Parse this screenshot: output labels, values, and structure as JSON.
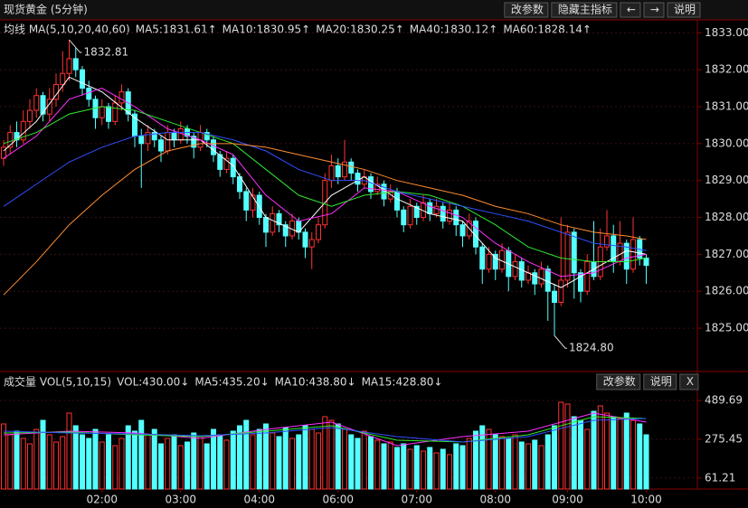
{
  "chart_data": [
    {
      "type": "candlestick",
      "title": "现货黄金 (5分钟)",
      "buttons": [
        "改参数",
        "隐藏主指标",
        "←",
        "→",
        "说明"
      ],
      "legend_title": "均线 MA(5,10,20,40,60)",
      "up_color": "#ff3232",
      "down_color": "#54ffff",
      "annotations": [
        {
          "text": "1832.81",
          "index": 10,
          "value": 1832.81
        },
        {
          "text": "1824.80",
          "index": 84,
          "value": 1824.8
        }
      ],
      "ylim": [
        1823.9,
        1833.35
      ],
      "yticks": [
        {
          "value": 1825,
          "label": "1825.00"
        },
        {
          "value": 1826,
          "label": "1826.00"
        },
        {
          "value": 1827,
          "label": "1827.00"
        },
        {
          "value": 1828,
          "label": "1828.00"
        },
        {
          "value": 1829,
          "label": "1829.00"
        },
        {
          "value": 1830,
          "label": "1830.00"
        },
        {
          "value": 1831,
          "label": "1831.00"
        },
        {
          "value": 1832,
          "label": "1832.00"
        },
        {
          "value": 1833,
          "label": "1833.00"
        }
      ],
      "grid": true,
      "categories": [
        null,
        null,
        null,
        null,
        null,
        null,
        null,
        null,
        null,
        null,
        null,
        null,
        null,
        null,
        null,
        "02:00",
        null,
        null,
        null,
        null,
        null,
        null,
        null,
        null,
        null,
        null,
        null,
        "03:00",
        null,
        null,
        null,
        null,
        null,
        null,
        null,
        null,
        null,
        null,
        null,
        "04:00",
        null,
        null,
        null,
        null,
        null,
        null,
        null,
        null,
        null,
        null,
        null,
        "06:00",
        null,
        null,
        null,
        null,
        null,
        null,
        null,
        null,
        null,
        null,
        null,
        "07:00",
        null,
        null,
        null,
        null,
        null,
        null,
        null,
        null,
        null,
        null,
        null,
        "08:00",
        null,
        null,
        null,
        null,
        null,
        null,
        null,
        null,
        null,
        null,
        "09:00",
        null,
        null,
        null,
        null,
        null,
        null,
        null,
        null,
        null,
        null,
        null,
        "10:00"
      ],
      "ohlc": [
        [
          1829.6,
          1830.1,
          1829.4,
          1829.9
        ],
        [
          1829.9,
          1830.5,
          1829.7,
          1830.3
        ],
        [
          1830.3,
          1830.6,
          1829.9,
          1830.1
        ],
        [
          1830.1,
          1830.9,
          1830.0,
          1830.6
        ],
        [
          1830.6,
          1831.2,
          1830.4,
          1830.9
        ],
        [
          1830.9,
          1831.5,
          1830.7,
          1831.3
        ],
        [
          1831.3,
          1831.4,
          1830.6,
          1830.8
        ],
        [
          1830.8,
          1831.5,
          1830.6,
          1831.2
        ],
        [
          1831.2,
          1831.9,
          1831.0,
          1831.6
        ],
        [
          1831.6,
          1832.5,
          1831.4,
          1831.9
        ],
        [
          1831.9,
          1832.81,
          1831.7,
          1832.3
        ],
        [
          1832.3,
          1832.6,
          1831.8,
          1832.0
        ],
        [
          1832.0,
          1832.1,
          1831.3,
          1831.5
        ],
        [
          1831.5,
          1831.7,
          1831.0,
          1831.2
        ],
        [
          1831.2,
          1831.3,
          1830.4,
          1830.7
        ],
        [
          1830.7,
          1831.2,
          1830.5,
          1831.0
        ],
        [
          1831.0,
          1831.1,
          1830.4,
          1830.6
        ],
        [
          1830.6,
          1831.3,
          1830.5,
          1831.1
        ],
        [
          1831.1,
          1831.6,
          1830.9,
          1831.4
        ],
        [
          1831.4,
          1831.5,
          1830.6,
          1830.8
        ],
        [
          1830.8,
          1830.9,
          1829.9,
          1830.2
        ],
        [
          1830.2,
          1830.4,
          1828.8,
          1830.0
        ],
        [
          1830.0,
          1830.5,
          1829.8,
          1830.3
        ],
        [
          1830.3,
          1830.4,
          1829.9,
          1830.1
        ],
        [
          1830.1,
          1830.2,
          1829.5,
          1829.8
        ],
        [
          1829.8,
          1830.5,
          1829.7,
          1830.3
        ],
        [
          1830.3,
          1830.4,
          1829.9,
          1830.1
        ],
        [
          1830.1,
          1830.6,
          1830.0,
          1830.4
        ],
        [
          1830.4,
          1830.5,
          1830.0,
          1830.2
        ],
        [
          1830.2,
          1830.3,
          1829.6,
          1829.9
        ],
        [
          1829.9,
          1830.5,
          1829.8,
          1830.3
        ],
        [
          1830.3,
          1830.4,
          1829.9,
          1830.1
        ],
        [
          1830.1,
          1830.2,
          1829.5,
          1829.7
        ],
        [
          1829.7,
          1829.8,
          1829.1,
          1829.3
        ],
        [
          1829.3,
          1829.8,
          1829.2,
          1829.6
        ],
        [
          1829.6,
          1829.7,
          1828.9,
          1829.1
        ],
        [
          1829.1,
          1829.2,
          1828.5,
          1828.7
        ],
        [
          1828.7,
          1828.8,
          1827.9,
          1828.2
        ],
        [
          1828.2,
          1828.8,
          1828.0,
          1828.6
        ],
        [
          1828.6,
          1828.7,
          1827.8,
          1828.0
        ],
        [
          1828.0,
          1828.1,
          1827.2,
          1827.6
        ],
        [
          1827.6,
          1828.3,
          1827.5,
          1828.1
        ],
        [
          1828.1,
          1828.2,
          1827.6,
          1827.8
        ],
        [
          1827.8,
          1827.9,
          1827.2,
          1827.5
        ],
        [
          1827.5,
          1828.1,
          1827.4,
          1827.9
        ],
        [
          1827.9,
          1828.0,
          1827.4,
          1827.6
        ],
        [
          1827.6,
          1827.7,
          1826.9,
          1827.2
        ],
        [
          1827.2,
          1827.6,
          1826.6,
          1827.4
        ],
        [
          1827.4,
          1828.0,
          1827.3,
          1827.8
        ],
        [
          1827.8,
          1829.2,
          1827.7,
          1829.0
        ],
        [
          1829.0,
          1829.7,
          1828.8,
          1829.4
        ],
        [
          1829.4,
          1829.6,
          1828.9,
          1829.1
        ],
        [
          1829.1,
          1830.1,
          1829.0,
          1829.5
        ],
        [
          1829.5,
          1829.6,
          1829.0,
          1829.2
        ],
        [
          1829.2,
          1829.3,
          1828.7,
          1828.9
        ],
        [
          1828.9,
          1829.3,
          1828.8,
          1829.1
        ],
        [
          1829.1,
          1829.2,
          1828.5,
          1828.7
        ],
        [
          1828.7,
          1829.1,
          1828.6,
          1828.9
        ],
        [
          1828.9,
          1829.0,
          1828.3,
          1828.5
        ],
        [
          1828.5,
          1828.9,
          1828.4,
          1828.7
        ],
        [
          1828.7,
          1828.8,
          1828.0,
          1828.2
        ],
        [
          1828.2,
          1828.3,
          1827.6,
          1827.8
        ],
        [
          1827.8,
          1828.5,
          1827.7,
          1828.3
        ],
        [
          1828.3,
          1828.4,
          1827.8,
          1828.0
        ],
        [
          1828.0,
          1828.6,
          1827.9,
          1828.4
        ],
        [
          1828.4,
          1828.5,
          1827.9,
          1828.1
        ],
        [
          1828.1,
          1828.5,
          1828.0,
          1828.3
        ],
        [
          1828.3,
          1828.4,
          1827.7,
          1827.9
        ],
        [
          1827.9,
          1828.4,
          1827.8,
          1828.2
        ],
        [
          1828.2,
          1828.3,
          1827.5,
          1827.8
        ],
        [
          1827.8,
          1827.9,
          1827.2,
          1827.5
        ],
        [
          1827.5,
          1828.1,
          1827.4,
          1827.9
        ],
        [
          1827.9,
          1828.0,
          1827.0,
          1827.2
        ],
        [
          1827.2,
          1827.3,
          1826.2,
          1826.6
        ],
        [
          1826.6,
          1827.2,
          1826.5,
          1827.0
        ],
        [
          1827.0,
          1827.1,
          1826.3,
          1826.6
        ],
        [
          1826.6,
          1827.3,
          1826.5,
          1827.1
        ],
        [
          1827.1,
          1827.2,
          1826.0,
          1826.4
        ],
        [
          1826.4,
          1827.0,
          1826.3,
          1826.8
        ],
        [
          1826.8,
          1826.9,
          1826.1,
          1826.3
        ],
        [
          1826.3,
          1826.7,
          1826.2,
          1826.5
        ],
        [
          1826.5,
          1826.6,
          1825.9,
          1826.2
        ],
        [
          1826.2,
          1826.8,
          1826.1,
          1826.6
        ],
        [
          1826.6,
          1826.7,
          1825.2,
          1826.0
        ],
        [
          1826.0,
          1826.2,
          1824.8,
          1825.7
        ],
        [
          1825.7,
          1828.0,
          1825.6,
          1826.3
        ],
        [
          1826.3,
          1827.8,
          1826.1,
          1827.6
        ],
        [
          1827.6,
          1827.7,
          1825.8,
          1826.5
        ],
        [
          1826.5,
          1826.6,
          1825.7,
          1826.0
        ],
        [
          1826.0,
          1827.0,
          1825.9,
          1826.8
        ],
        [
          1826.8,
          1827.9,
          1826.3,
          1826.4
        ],
        [
          1826.4,
          1827.7,
          1826.3,
          1827.2
        ],
        [
          1827.2,
          1828.2,
          1827.1,
          1827.5
        ],
        [
          1827.5,
          1827.8,
          1826.5,
          1826.8
        ],
        [
          1826.8,
          1827.9,
          1826.7,
          1827.3
        ],
        [
          1827.3,
          1827.4,
          1826.2,
          1826.6
        ],
        [
          1826.6,
          1828.0,
          1826.5,
          1827.4
        ],
        [
          1827.4,
          1827.5,
          1826.7,
          1826.9
        ],
        [
          1826.9,
          1827.0,
          1826.2,
          1826.7
        ]
      ],
      "series": [
        {
          "name": "MA5:1831.61↑",
          "color": "#ffffff",
          "x": [
            0,
            5,
            10,
            15,
            20,
            25,
            30,
            35,
            40,
            45,
            50,
            55,
            60,
            65,
            70,
            75,
            80,
            85,
            90,
            95,
            98
          ],
          "values": [
            1829.8,
            1830.6,
            1831.8,
            1831.4,
            1830.7,
            1830.1,
            1830.1,
            1829.4,
            1828.0,
            1827.6,
            1828.6,
            1829.1,
            1828.5,
            1828.1,
            1827.9,
            1826.9,
            1826.5,
            1826.1,
            1826.6,
            1827.1,
            1827.0
          ]
        },
        {
          "name": "MA10:1830.95↑",
          "color": "#ff30ff",
          "x": [
            0,
            5,
            10,
            15,
            20,
            25,
            30,
            35,
            40,
            45,
            50,
            55,
            60,
            65,
            70,
            75,
            80,
            85,
            90,
            95,
            98
          ],
          "values": [
            1829.6,
            1830.2,
            1831.2,
            1831.5,
            1831.0,
            1830.4,
            1830.1,
            1829.7,
            1828.6,
            1827.9,
            1828.1,
            1828.8,
            1828.7,
            1828.3,
            1828.0,
            1827.3,
            1826.8,
            1826.4,
            1826.5,
            1826.9,
            1827.0
          ]
        },
        {
          "name": "MA20:1830.25↑",
          "color": "#30e830",
          "x": [
            0,
            5,
            10,
            15,
            20,
            25,
            30,
            35,
            40,
            45,
            50,
            55,
            60,
            65,
            70,
            75,
            80,
            85,
            90,
            95,
            98
          ],
          "values": [
            1830.0,
            1830.3,
            1830.8,
            1831.0,
            1830.9,
            1830.6,
            1830.3,
            1830.0,
            1829.3,
            1828.6,
            1828.3,
            1828.6,
            1828.7,
            1828.6,
            1828.3,
            1827.8,
            1827.2,
            1826.9,
            1826.8,
            1826.8,
            1826.9
          ]
        },
        {
          "name": "MA40:1830.12↑",
          "color": "#3050ff",
          "x": [
            0,
            5,
            10,
            15,
            20,
            25,
            30,
            35,
            40,
            45,
            50,
            55,
            60,
            65,
            70,
            75,
            80,
            85,
            90,
            95,
            98
          ],
          "values": [
            1828.3,
            1828.9,
            1829.5,
            1829.9,
            1830.2,
            1830.3,
            1830.3,
            1830.1,
            1829.8,
            1829.3,
            1829.0,
            1829.0,
            1828.7,
            1828.5,
            1828.3,
            1828.1,
            1827.9,
            1827.6,
            1827.3,
            1827.2,
            1827.1
          ]
        },
        {
          "name": "MA60:1828.14↑",
          "color": "#ff8c30",
          "x": [
            0,
            5,
            10,
            15,
            20,
            25,
            30,
            35,
            40,
            45,
            50,
            55,
            60,
            65,
            70,
            75,
            80,
            85,
            90,
            95,
            98
          ],
          "values": [
            1825.9,
            1826.8,
            1827.8,
            1828.6,
            1829.3,
            1829.8,
            1830.0,
            1830.0,
            1829.9,
            1829.7,
            1829.5,
            1829.3,
            1829.0,
            1828.8,
            1828.6,
            1828.3,
            1828.1,
            1827.8,
            1827.6,
            1827.5,
            1827.4
          ]
        }
      ]
    },
    {
      "type": "bar",
      "legend_title": "成交量 VOL(5,10,15)",
      "volume_label": "VOL:430.00↓",
      "buttons": [
        "改参数",
        "说明",
        "X"
      ],
      "ylim": [
        0,
        560
      ],
      "yticks": [
        61.21,
        275.45,
        489.69
      ],
      "grid": true,
      "values": [
        360,
        300,
        320,
        280,
        250,
        330,
        380,
        300,
        260,
        290,
        420,
        350,
        300,
        280,
        330,
        260,
        300,
        240,
        280,
        350,
        320,
        380,
        300,
        330,
        250,
        280,
        300,
        240,
        260,
        310,
        290,
        250,
        330,
        300,
        270,
        320,
        350,
        380,
        300,
        330,
        360,
        310,
        290,
        340,
        280,
        300,
        350,
        330,
        310,
        400,
        380,
        360,
        330,
        300,
        280,
        320,
        290,
        270,
        250,
        260,
        230,
        250,
        220,
        240,
        210,
        230,
        200,
        220,
        190,
        250,
        240,
        280,
        320,
        350,
        330,
        300,
        290,
        280,
        300,
        260,
        250,
        270,
        240,
        300,
        350,
        480,
        470,
        400,
        380,
        330,
        430,
        460,
        420,
        400,
        390,
        420,
        380,
        360,
        300
      ],
      "series": [
        {
          "name": "MA5:435.20↓",
          "color": "#ff30ff",
          "x": [
            0,
            10,
            20,
            30,
            40,
            50,
            60,
            70,
            80,
            90,
            98
          ],
          "values": [
            300,
            320,
            310,
            280,
            330,
            370,
            240,
            290,
            320,
            420,
            370
          ]
        },
        {
          "name": "MA10:438.80↓",
          "color": "#30e830",
          "x": [
            0,
            10,
            20,
            30,
            40,
            50,
            60,
            70,
            80,
            90,
            98
          ],
          "values": [
            310,
            315,
            300,
            290,
            320,
            350,
            270,
            260,
            300,
            400,
            390
          ]
        },
        {
          "name": "MA15:428.80↓",
          "color": "#3050ff",
          "x": [
            0,
            10,
            20,
            30,
            40,
            50,
            60,
            70,
            80,
            90,
            98
          ],
          "values": [
            320,
            310,
            305,
            295,
            310,
            340,
            290,
            260,
            290,
            380,
            390
          ]
        }
      ]
    }
  ]
}
